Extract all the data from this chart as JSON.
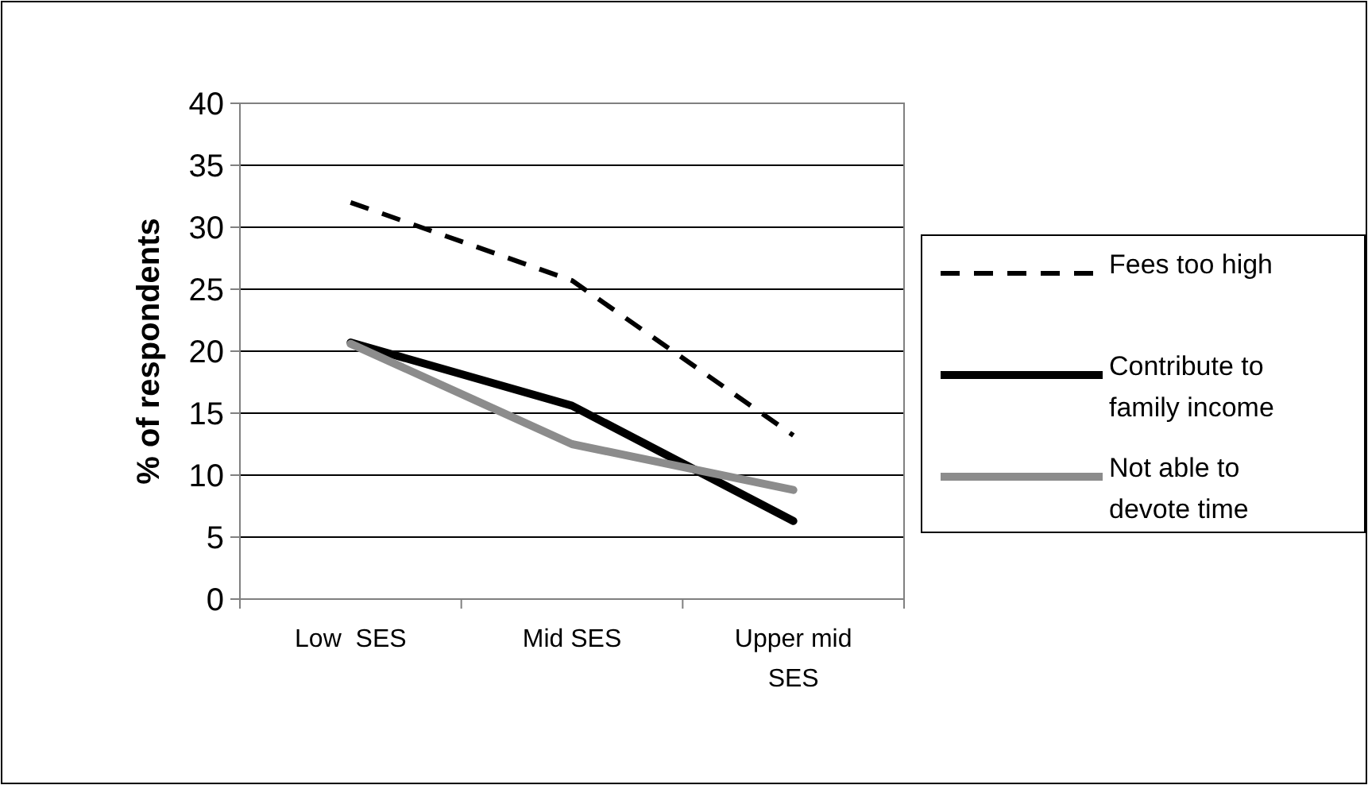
{
  "chart_data": {
    "type": "line",
    "ylabel": "% of respondents",
    "categories": [
      "Low  SES",
      "Mid SES",
      "Upper mid SES"
    ],
    "series": [
      {
        "name": "Fees too high",
        "color": "#000000",
        "line_style": "dashed",
        "values": [
          32,
          25.7,
          13.2
        ]
      },
      {
        "name": "Contribute to family income",
        "color": "#000000",
        "line_style": "solid",
        "values": [
          20.7,
          15.6,
          6.3
        ]
      },
      {
        "name": "Not able to devote time",
        "color": "#8c8c8c",
        "line_style": "solid",
        "values": [
          20.6,
          12.5,
          8.8
        ]
      }
    ],
    "ylim": [
      0,
      40
    ],
    "yticks": [
      0,
      5,
      10,
      15,
      20,
      25,
      30,
      35,
      40
    ],
    "grid": "y",
    "legend": "right",
    "marker": "none"
  }
}
